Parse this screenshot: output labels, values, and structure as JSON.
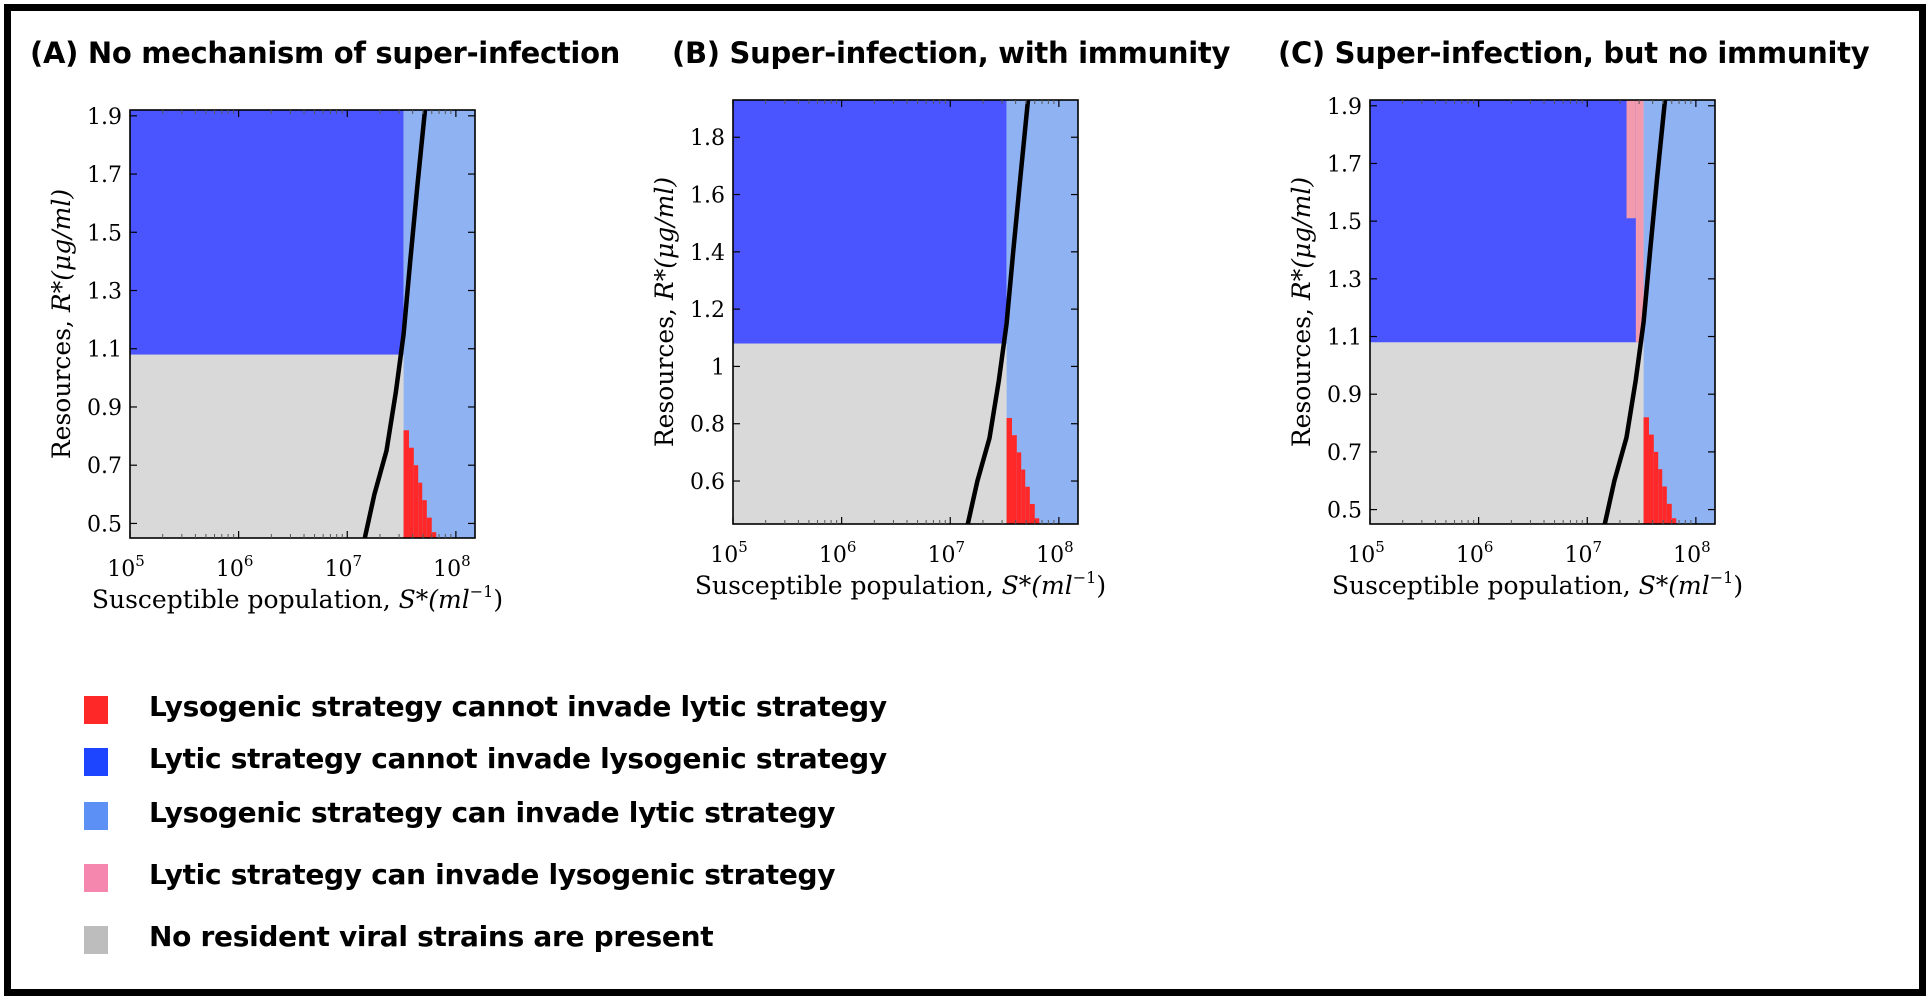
{
  "colors": {
    "lysogenic_cannot_invade": "#ff2828",
    "lytic_cannot_invade": "#4a55ff",
    "lysogenic_can_invade": "#8fb2f2",
    "lytic_can_invade": "#f29aae",
    "no_resident": "#d9d9d9",
    "boundary": "#000000"
  },
  "legend": [
    {
      "label": "Lysogenic strategy cannot invade lytic strategy",
      "color": "#ff2828"
    },
    {
      "label": "Lytic strategy cannot invade lysogenic strategy",
      "color": "#1d44ff"
    },
    {
      "label": "Lysogenic strategy can invade lytic strategy",
      "color": "#5d90f5"
    },
    {
      "label": "Lytic strategy can invade lysogenic strategy",
      "color": "#f587ae"
    },
    {
      "label": "No resident viral strains are present",
      "color": "#bdbdbd"
    }
  ],
  "chart_data": [
    {
      "type": "heatmap",
      "title": "(A) No mechanism of super-infection",
      "xlabel_text": "Susceptible population, ",
      "xlabel_var": "S*(ml",
      "xlabel_exp": "−1",
      "xlabel_close": ")",
      "ylabel_text": "Resources, ",
      "ylabel_var": "R*(μg/ml)",
      "x_scale": "log",
      "xlim": [
        100000,
        150000000
      ],
      "ylim": [
        0.45,
        1.92
      ],
      "x_ticks": [
        {
          "value": 100000,
          "base": "10",
          "exp": "5"
        },
        {
          "value": 1000000,
          "base": "10",
          "exp": "6"
        },
        {
          "value": 10000000,
          "base": "10",
          "exp": "7"
        },
        {
          "value": 100000000,
          "base": "10",
          "exp": "8"
        }
      ],
      "y_ticks": [
        {
          "value": 0.5,
          "label": "0.5"
        },
        {
          "value": 0.7,
          "label": "0.7"
        },
        {
          "value": 0.9,
          "label": "0.9"
        },
        {
          "value": 1.1,
          "label": "1.1"
        },
        {
          "value": 1.3,
          "label": "1.3"
        },
        {
          "value": 1.5,
          "label": "1.5"
        },
        {
          "value": 1.7,
          "label": "1.7"
        },
        {
          "value": 1.9,
          "label": "1.9"
        }
      ],
      "regions": {
        "x_threshold": 33000000,
        "r_threshold": 1.08,
        "pink": null,
        "red_steps": [
          {
            "x": 33000000,
            "r": 0.82
          },
          {
            "x": 37000000,
            "r": 0.76
          },
          {
            "x": 41000000,
            "r": 0.7
          },
          {
            "x": 45000000,
            "r": 0.64
          },
          {
            "x": 49000000,
            "r": 0.58
          },
          {
            "x": 54000000,
            "r": 0.52
          },
          {
            "x": 60000000,
            "r": 0.47
          },
          {
            "x": 66000000,
            "r": 0.45
          }
        ]
      },
      "boundary": [
        {
          "x": 14500000,
          "r": 0.45
        },
        {
          "x": 17800000,
          "r": 0.6
        },
        {
          "x": 23000000,
          "r": 0.75
        },
        {
          "x": 28000000,
          "r": 0.95
        },
        {
          "x": 33000000,
          "r": 1.15
        },
        {
          "x": 38000000,
          "r": 1.4
        },
        {
          "x": 44000000,
          "r": 1.65
        },
        {
          "x": 52000000,
          "r": 1.92
        }
      ]
    },
    {
      "type": "heatmap",
      "title": "(B) Super-infection, with immunity",
      "xlabel_text": "Susceptible population, ",
      "xlabel_var": "S*(ml",
      "xlabel_exp": "−1",
      "xlabel_close": ")",
      "ylabel_text": "Resources, ",
      "ylabel_var": "R*(μg/ml)",
      "x_scale": "log",
      "xlim": [
        100000,
        150000000
      ],
      "ylim": [
        0.45,
        1.93
      ],
      "x_ticks": [
        {
          "value": 100000,
          "base": "10",
          "exp": "5"
        },
        {
          "value": 1000000,
          "base": "10",
          "exp": "6"
        },
        {
          "value": 10000000,
          "base": "10",
          "exp": "7"
        },
        {
          "value": 100000000,
          "base": "10",
          "exp": "8"
        }
      ],
      "y_ticks": [
        {
          "value": 0.6,
          "label": "0.6"
        },
        {
          "value": 0.8,
          "label": "0.8"
        },
        {
          "value": 1.0,
          "label": "1"
        },
        {
          "value": 1.2,
          "label": "1.2"
        },
        {
          "value": 1.4,
          "label": "1.4"
        },
        {
          "value": 1.6,
          "label": "1.6"
        },
        {
          "value": 1.8,
          "label": "1.8"
        }
      ],
      "regions": {
        "x_threshold": 33000000,
        "r_threshold": 1.08,
        "pink": null,
        "red_steps": [
          {
            "x": 33000000,
            "r": 0.82
          },
          {
            "x": 37000000,
            "r": 0.76
          },
          {
            "x": 41000000,
            "r": 0.7
          },
          {
            "x": 45000000,
            "r": 0.64
          },
          {
            "x": 49000000,
            "r": 0.58
          },
          {
            "x": 54000000,
            "r": 0.52
          },
          {
            "x": 60000000,
            "r": 0.47
          },
          {
            "x": 66000000,
            "r": 0.45
          }
        ]
      },
      "boundary": [
        {
          "x": 14500000,
          "r": 0.45
        },
        {
          "x": 17800000,
          "r": 0.6
        },
        {
          "x": 23000000,
          "r": 0.75
        },
        {
          "x": 28000000,
          "r": 0.95
        },
        {
          "x": 33000000,
          "r": 1.15
        },
        {
          "x": 38000000,
          "r": 1.4
        },
        {
          "x": 44000000,
          "r": 1.65
        },
        {
          "x": 52000000,
          "r": 1.93
        }
      ]
    },
    {
      "type": "heatmap",
      "title": "(C) Super-infection, but no immunity",
      "xlabel_text": "Susceptible population, ",
      "xlabel_var": "S*(ml",
      "xlabel_exp": "−1",
      "xlabel_close": ")",
      "ylabel_text": "Resources, ",
      "ylabel_var": "R*(μg/ml)",
      "x_scale": "log",
      "xlim": [
        100000,
        150000000
      ],
      "ylim": [
        0.45,
        1.92
      ],
      "x_ticks": [
        {
          "value": 100000,
          "base": "10",
          "exp": "5"
        },
        {
          "value": 1000000,
          "base": "10",
          "exp": "6"
        },
        {
          "value": 10000000,
          "base": "10",
          "exp": "7"
        },
        {
          "value": 100000000,
          "base": "10",
          "exp": "8"
        }
      ],
      "y_ticks": [
        {
          "value": 0.5,
          "label": "0.5"
        },
        {
          "value": 0.7,
          "label": "0.7"
        },
        {
          "value": 0.9,
          "label": "0.9"
        },
        {
          "value": 1.1,
          "label": "1.1"
        },
        {
          "value": 1.3,
          "label": "1.3"
        },
        {
          "value": 1.5,
          "label": "1.5"
        },
        {
          "value": 1.7,
          "label": "1.7"
        },
        {
          "value": 1.9,
          "label": "1.9"
        }
      ],
      "regions": {
        "x_threshold": 33000000,
        "r_threshold": 1.08,
        "pink": [
          {
            "x0": 23000000,
            "x1": 28000000,
            "r0": 1.51,
            "r1": 1.92
          },
          {
            "x0": 28000000,
            "x1": 33000000,
            "r0": 1.08,
            "r1": 1.92
          }
        ],
        "red_steps": [
          {
            "x": 33000000,
            "r": 0.82
          },
          {
            "x": 37000000,
            "r": 0.76
          },
          {
            "x": 41000000,
            "r": 0.7
          },
          {
            "x": 45000000,
            "r": 0.64
          },
          {
            "x": 49000000,
            "r": 0.58
          },
          {
            "x": 54000000,
            "r": 0.52
          },
          {
            "x": 60000000,
            "r": 0.47
          },
          {
            "x": 66000000,
            "r": 0.45
          }
        ]
      },
      "boundary": [
        {
          "x": 14500000,
          "r": 0.45
        },
        {
          "x": 17800000,
          "r": 0.6
        },
        {
          "x": 23000000,
          "r": 0.75
        },
        {
          "x": 28000000,
          "r": 0.95
        },
        {
          "x": 33000000,
          "r": 1.15
        },
        {
          "x": 38000000,
          "r": 1.4
        },
        {
          "x": 44000000,
          "r": 1.65
        },
        {
          "x": 52000000,
          "r": 1.92
        }
      ]
    }
  ]
}
